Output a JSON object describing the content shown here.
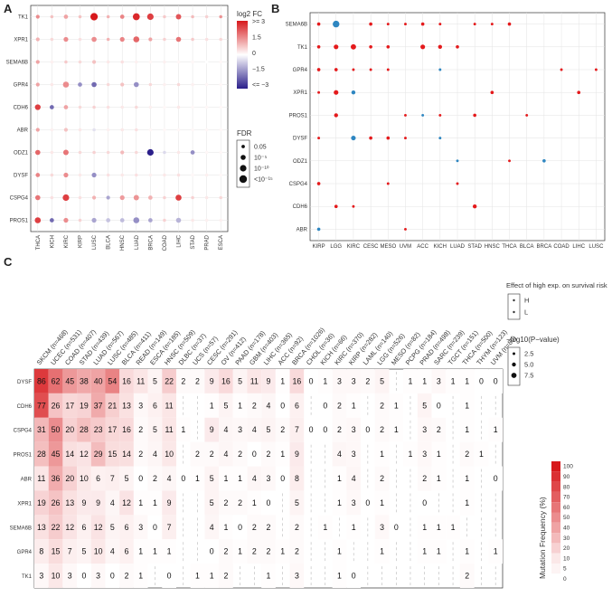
{
  "panel_labels": [
    "A",
    "B",
    "C"
  ],
  "chart_data": [
    {
      "type": "scatter",
      "panel": "A",
      "title": "",
      "xlabel": "",
      "ylabel": "",
      "genes": [
        "TK1",
        "XPR1",
        "SEMA6B",
        "GPR4",
        "CDH6",
        "ABR",
        "ODZ1",
        "DYSF",
        "CSPG4",
        "PROS1"
      ],
      "cancers": [
        "THCA",
        "KICH",
        "KIRC",
        "KIRP",
        "LUSC",
        "BLCA",
        "HNSC",
        "LUAD",
        "BRCA",
        "COAD",
        "LIHC",
        "STAD",
        "PRAD",
        "ESCA"
      ],
      "log2fc": [
        [
          1.5,
          0.8,
          1.2,
          0.8,
          3.0,
          1.0,
          1.6,
          2.8,
          2.5,
          0.7,
          2.2,
          0.9,
          0.6,
          1.4
        ],
        [
          1.0,
          0.5,
          1.5,
          0.4,
          1.5,
          1.0,
          1.6,
          2.0,
          1.2,
          0.6,
          1.8,
          0.7,
          0.4,
          0.5
        ],
        [
          1.2,
          0.2,
          0.7,
          0.5,
          0.8,
          0.3,
          0.4,
          0.2,
          0.1,
          0.2,
          0.1,
          0.1,
          0.0,
          0.1
        ],
        [
          1.2,
          0.3,
          1.5,
          -1.5,
          -2.0,
          0.5,
          0.8,
          -1.5,
          0.5,
          0.2,
          0.5,
          0.2,
          0.1,
          0.1
        ],
        [
          2.5,
          -2.0,
          1.2,
          0.5,
          0.6,
          0.4,
          0.3,
          0.5,
          0.2,
          0.1,
          0.3,
          0.1,
          0.1,
          0.1
        ],
        [
          1.2,
          0.2,
          0.8,
          0.3,
          -0.4,
          0.2,
          0.3,
          0.4,
          0.1,
          0.1,
          0.1,
          0.1,
          0.1,
          0.1
        ],
        [
          2.0,
          0.3,
          1.8,
          0.5,
          0.6,
          0.5,
          0.9,
          0.5,
          -3.0,
          -0.5,
          0.3,
          -1.5,
          0.1,
          0.1
        ],
        [
          1.6,
          0.5,
          1.5,
          0.3,
          -1.5,
          0.4,
          0.3,
          0.4,
          0.2,
          0.3,
          0.4,
          0.1,
          0.2,
          0.1
        ],
        [
          1.8,
          0.4,
          2.5,
          0.4,
          1.0,
          -1.2,
          1.3,
          1.4,
          1.0,
          0.6,
          2.5,
          0.6,
          0.3,
          0.5
        ],
        [
          2.5,
          -2.0,
          1.5,
          0.6,
          -1.2,
          -0.8,
          -0.9,
          -1.5,
          -1.2,
          0.6,
          -1.0,
          0.3,
          0.2,
          0.2
        ]
      ],
      "neglog10_fdr": [
        [
          2,
          1,
          3,
          1,
          14,
          1,
          3,
          12,
          10,
          1,
          6,
          1,
          1,
          1
        ],
        [
          2,
          1,
          4,
          1,
          5,
          1,
          4,
          8,
          2,
          1,
          5,
          1,
          1,
          1
        ],
        [
          2,
          1,
          1,
          1,
          2,
          1,
          1,
          1,
          1,
          1,
          1,
          1,
          1,
          1
        ],
        [
          2,
          1,
          8,
          3,
          5,
          1,
          2,
          5,
          1,
          1,
          1,
          1,
          1,
          1
        ],
        [
          7,
          3,
          3,
          1,
          1,
          1,
          1,
          1,
          1,
          1,
          1,
          1,
          1,
          1
        ],
        [
          2,
          1,
          2,
          1,
          1,
          1,
          1,
          1,
          1,
          1,
          1,
          1,
          1,
          1
        ],
        [
          5,
          1,
          6,
          1,
          1,
          1,
          2,
          1,
          10,
          1,
          1,
          3,
          1,
          1
        ],
        [
          3,
          1,
          4,
          1,
          4,
          1,
          1,
          1,
          1,
          1,
          1,
          1,
          1,
          1
        ],
        [
          5,
          1,
          10,
          1,
          2,
          2,
          4,
          6,
          3,
          1,
          8,
          1,
          1,
          1
        ],
        [
          8,
          3,
          4,
          1,
          4,
          3,
          3,
          8,
          3,
          1,
          5,
          1,
          1,
          1
        ]
      ],
      "legend_fc": {
        "title": "log2 FC",
        "ticks": [
          ">= 3",
          "1.5",
          "0",
          "−1.5",
          "<= −3"
        ]
      },
      "legend_fdr": {
        "title": "FDR",
        "labels": [
          "0.05",
          "10⁻⁵",
          "10⁻¹⁰",
          "<10⁻¹⁵"
        ],
        "values": [
          1.3,
          5,
          10,
          15
        ]
      }
    },
    {
      "type": "scatter",
      "panel": "B",
      "genes": [
        "SEMA6B",
        "TK1",
        "GPR4",
        "XPR1",
        "PROS1",
        "DYSF",
        "ODZ1",
        "CSPG4",
        "CDH6",
        "ABR"
      ],
      "cancers": [
        "KIRP",
        "LGG",
        "KIRC",
        "CESC",
        "MESO",
        "UVM",
        "ACC",
        "KICH",
        "LUAD",
        "STAD",
        "HNSC",
        "THCA",
        "BLCA",
        "BRCA",
        "COAD",
        "LIHC",
        "LUSC"
      ],
      "points": [
        {
          "gene": "SEMA6B",
          "cancer": "KIRP",
          "risk": "H",
          "size": 1.5
        },
        {
          "gene": "SEMA6B",
          "cancer": "LGG",
          "risk": "L",
          "size": 4
        },
        {
          "gene": "SEMA6B",
          "cancer": "CESC",
          "risk": "H",
          "size": 1.5
        },
        {
          "gene": "SEMA6B",
          "cancer": "MESO",
          "risk": "H",
          "size": 1
        },
        {
          "gene": "SEMA6B",
          "cancer": "UVM",
          "risk": "H",
          "size": 1
        },
        {
          "gene": "SEMA6B",
          "cancer": "ACC",
          "risk": "H",
          "size": 1.5
        },
        {
          "gene": "SEMA6B",
          "cancer": "KICH",
          "risk": "H",
          "size": 1
        },
        {
          "gene": "SEMA6B",
          "cancer": "STAD",
          "risk": "H",
          "size": 1
        },
        {
          "gene": "SEMA6B",
          "cancer": "HNSC",
          "risk": "H",
          "size": 1
        },
        {
          "gene": "SEMA6B",
          "cancer": "THCA",
          "risk": "H",
          "size": 1.5
        },
        {
          "gene": "TK1",
          "cancer": "KIRP",
          "risk": "H",
          "size": 1.5
        },
        {
          "gene": "TK1",
          "cancer": "LGG",
          "risk": "H",
          "size": 2.5
        },
        {
          "gene": "TK1",
          "cancer": "KIRC",
          "risk": "H",
          "size": 3
        },
        {
          "gene": "TK1",
          "cancer": "CESC",
          "risk": "H",
          "size": 1.5
        },
        {
          "gene": "TK1",
          "cancer": "MESO",
          "risk": "H",
          "size": 1.5
        },
        {
          "gene": "TK1",
          "cancer": "ACC",
          "risk": "H",
          "size": 2.5
        },
        {
          "gene": "TK1",
          "cancer": "KICH",
          "risk": "H",
          "size": 2
        },
        {
          "gene": "TK1",
          "cancer": "LUAD",
          "risk": "H",
          "size": 1.5
        },
        {
          "gene": "GPR4",
          "cancer": "KIRP",
          "risk": "H",
          "size": 1.5
        },
        {
          "gene": "GPR4",
          "cancer": "LGG",
          "risk": "H",
          "size": 1.5
        },
        {
          "gene": "GPR4",
          "cancer": "KIRC",
          "risk": "H",
          "size": 1
        },
        {
          "gene": "GPR4",
          "cancer": "CESC",
          "risk": "H",
          "size": 1
        },
        {
          "gene": "GPR4",
          "cancer": "MESO",
          "risk": "H",
          "size": 1
        },
        {
          "gene": "GPR4",
          "cancer": "KICH",
          "risk": "L",
          "size": 1
        },
        {
          "gene": "GPR4",
          "cancer": "COAD",
          "risk": "H",
          "size": 1
        },
        {
          "gene": "GPR4",
          "cancer": "LUSC",
          "risk": "H",
          "size": 1
        },
        {
          "gene": "XPR1",
          "cancer": "KIRP",
          "risk": "H",
          "size": 1
        },
        {
          "gene": "XPR1",
          "cancer": "LGG",
          "risk": "H",
          "size": 2.5
        },
        {
          "gene": "XPR1",
          "cancer": "KIRC",
          "risk": "L",
          "size": 2
        },
        {
          "gene": "XPR1",
          "cancer": "HNSC",
          "risk": "H",
          "size": 1.5
        },
        {
          "gene": "XPR1",
          "cancer": "LIHC",
          "risk": "H",
          "size": 1.5
        },
        {
          "gene": "PROS1",
          "cancer": "LGG",
          "risk": "H",
          "size": 2
        },
        {
          "gene": "PROS1",
          "cancer": "UVM",
          "risk": "H",
          "size": 1
        },
        {
          "gene": "PROS1",
          "cancer": "ACC",
          "risk": "L",
          "size": 1
        },
        {
          "gene": "PROS1",
          "cancer": "KICH",
          "risk": "H",
          "size": 1
        },
        {
          "gene": "PROS1",
          "cancer": "STAD",
          "risk": "H",
          "size": 1.5
        },
        {
          "gene": "PROS1",
          "cancer": "BLCA",
          "risk": "H",
          "size": 1
        },
        {
          "gene": "DYSF",
          "cancer": "KIRP",
          "risk": "H",
          "size": 1
        },
        {
          "gene": "DYSF",
          "cancer": "KIRC",
          "risk": "L",
          "size": 2.5
        },
        {
          "gene": "DYSF",
          "cancer": "CESC",
          "risk": "H",
          "size": 1.5
        },
        {
          "gene": "DYSF",
          "cancer": "MESO",
          "risk": "H",
          "size": 1.5
        },
        {
          "gene": "DYSF",
          "cancer": "UVM",
          "risk": "H",
          "size": 1
        },
        {
          "gene": "DYSF",
          "cancer": "KICH",
          "risk": "L",
          "size": 1
        },
        {
          "gene": "ODZ1",
          "cancer": "LUAD",
          "risk": "L",
          "size": 1
        },
        {
          "gene": "ODZ1",
          "cancer": "THCA",
          "risk": "H",
          "size": 1
        },
        {
          "gene": "ODZ1",
          "cancer": "BRCA",
          "risk": "L",
          "size": 1.5
        },
        {
          "gene": "CSPG4",
          "cancer": "KIRP",
          "risk": "H",
          "size": 1.5
        },
        {
          "gene": "CSPG4",
          "cancer": "MESO",
          "risk": "H",
          "size": 1
        },
        {
          "gene": "CSPG4",
          "cancer": "LUAD",
          "risk": "H",
          "size": 1
        },
        {
          "gene": "CDH6",
          "cancer": "LGG",
          "risk": "H",
          "size": 1.5
        },
        {
          "gene": "CDH6",
          "cancer": "KIRC",
          "risk": "H",
          "size": 1
        },
        {
          "gene": "CDH6",
          "cancer": "STAD",
          "risk": "H",
          "size": 2
        },
        {
          "gene": "ABR",
          "cancer": "KIRP",
          "risk": "L",
          "size": 1.5
        },
        {
          "gene": "ABR",
          "cancer": "UVM",
          "risk": "H",
          "size": 1
        }
      ],
      "legend_risk": {
        "title": "Effect of high exp. on survival risk",
        "labels": [
          "H",
          "L"
        ]
      },
      "legend_p": {
        "title": "−log10(P−value)",
        "labels": [
          "2.5",
          "5.0",
          "7.5"
        ],
        "values": [
          2.5,
          5.0,
          7.5
        ]
      }
    },
    {
      "type": "heatmap",
      "panel": "C",
      "title": "",
      "cancers": [
        "SKCM (n=468)",
        "UCEC (n=531)",
        "COAD (n=407)",
        "STAD (n=439)",
        "LUAD (n=567)",
        "LUSC (n=485)",
        "BLCA (n=411)",
        "READ (n=149)",
        "ESCA (n=185)",
        "HNSC (n=509)",
        "DLBC (n=37)",
        "UCS (n=57)",
        "CESC (n=291)",
        "OV (n=412)",
        "PAAD (n=178)",
        "GBM (n=403)",
        "LIHC (n=365)",
        "ACC (n=92)",
        "BRCA (n=1026)",
        "CHOL (n=36)",
        "KICH (n=66)",
        "KIRC (n=370)",
        "KIRP (n=282)",
        "LAML (n=140)",
        "LGG (n=526)",
        "MESO (n=82)",
        "PCPG (n=184)",
        "PRAD (n=498)",
        "SARC (n=239)",
        "TGCT (n=151)",
        "THCA (n=500)",
        "THYM (n=123)",
        "UVM (n=80)"
      ],
      "genes": [
        "DYSF",
        "CDH6",
        "CSPG4",
        "PROS1",
        "ABR",
        "XPR1",
        "SEMA6B",
        "GPR4",
        "TK1"
      ],
      "values": [
        [
          "86",
          "62",
          "45",
          "38",
          "40",
          "54",
          "16",
          "11",
          "5",
          "22",
          "2",
          "2",
          "9",
          "16",
          "5",
          "11",
          "9",
          "1",
          "16",
          "0",
          "1",
          "3",
          "3",
          "2",
          "5",
          "",
          "1",
          "1",
          "3",
          "1",
          "1",
          "0",
          "0"
        ],
        [
          "77",
          "26",
          "17",
          "19",
          "37",
          "21",
          "13",
          "3",
          "6",
          "11",
          "",
          "",
          "1",
          "5",
          "1",
          "2",
          "4",
          "0",
          "6",
          "",
          "0",
          "2",
          "1",
          "",
          "2",
          "1",
          "",
          "5",
          "0",
          "",
          "1",
          "",
          ""
        ],
        [
          "31",
          "50",
          "20",
          "28",
          "23",
          "17",
          "16",
          "2",
          "5",
          "11",
          "1",
          "",
          "9",
          "4",
          "3",
          "4",
          "5",
          "2",
          "7",
          "0",
          "0",
          "2",
          "3",
          "0",
          "2",
          "1",
          "",
          "3",
          "2",
          "",
          "1",
          "",
          "1"
        ],
        [
          "28",
          "45",
          "14",
          "12",
          "29",
          "15",
          "14",
          "2",
          "4",
          "10",
          "",
          "2",
          "2",
          "4",
          "2",
          "0",
          "2",
          "1",
          "9",
          "",
          "",
          "4",
          "3",
          "",
          "1",
          "",
          "1",
          "3",
          "1",
          "",
          "2",
          "1",
          ""
        ],
        [
          "11",
          "36",
          "20",
          "10",
          "6",
          "7",
          "5",
          "0",
          "2",
          "4",
          "0",
          "1",
          "5",
          "1",
          "1",
          "4",
          "3",
          "0",
          "8",
          "",
          "",
          "1",
          "4",
          "",
          "2",
          "",
          "",
          "2",
          "1",
          "",
          "1",
          "",
          "0"
        ],
        [
          "19",
          "26",
          "13",
          "9",
          "9",
          "4",
          "12",
          "1",
          "1",
          "9",
          "",
          "",
          "5",
          "2",
          "2",
          "1",
          "0",
          "",
          "5",
          "",
          "",
          "1",
          "3",
          "0",
          "1",
          "",
          "",
          "0",
          "",
          "",
          "1",
          "",
          ""
        ],
        [
          "13",
          "22",
          "12",
          "6",
          "12",
          "5",
          "6",
          "3",
          "0",
          "7",
          "",
          "",
          "4",
          "1",
          "0",
          "2",
          "2",
          "",
          "2",
          "",
          "1",
          "",
          "1",
          "",
          "3",
          "0",
          "",
          "1",
          "1",
          "1",
          "",
          "",
          ""
        ],
        [
          "8",
          "15",
          "7",
          "5",
          "10",
          "4",
          "6",
          "1",
          "1",
          "1",
          "",
          "",
          "0",
          "2",
          "1",
          "2",
          "2",
          "1",
          "2",
          "",
          "",
          "1",
          "",
          "",
          "1",
          "",
          "",
          "1",
          "1",
          "",
          "1",
          "",
          "1"
        ],
        [
          "3",
          "10",
          "3",
          "0",
          "3",
          "0",
          "2",
          "1",
          "",
          "0",
          "",
          "1",
          "1",
          "2",
          "",
          "",
          "1",
          "",
          "3",
          "",
          "",
          "1",
          "0",
          "",
          "",
          "",
          "",
          "",
          "",
          "",
          "2",
          "",
          ""
        ]
      ],
      "legend": {
        "title": "Mutation Frequency (%)",
        "ticks": [
          "100",
          "90",
          "80",
          "70",
          "60",
          "50",
          "40",
          "30",
          "20",
          "10",
          "5",
          "0"
        ]
      }
    }
  ]
}
